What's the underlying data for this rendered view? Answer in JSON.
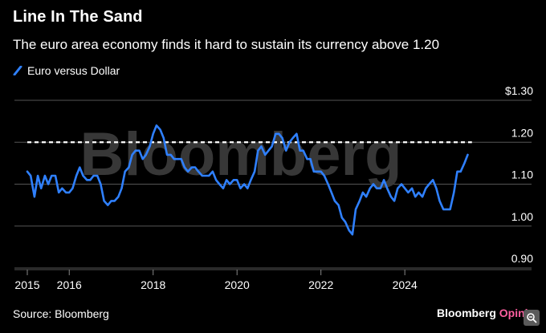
{
  "title": "Line In The Sand",
  "subtitle": "The euro area economy finds it hard to sustain its currency above 1.20",
  "legend": {
    "label": "Euro versus Dollar"
  },
  "watermark": "Bloomberg",
  "source": "Source: Bloomberg",
  "brand": {
    "name": "Bloomberg",
    "suffix": "Opinion"
  },
  "colors": {
    "series": "#2f80ff",
    "background": "#000000",
    "grid": "#555555",
    "reference": "#ffffff",
    "brand_accent": "#ff5fa0"
  },
  "icons": {
    "corner": "expand-icon"
  },
  "chart_data": {
    "type": "line",
    "title": "Line In The Sand",
    "subtitle": "The euro area economy finds it hard to sustain its currency above 1.20",
    "xlabel": "",
    "ylabel": "",
    "xlim": [
      2015,
      2026.6
    ],
    "ylim": [
      0.88,
      1.3
    ],
    "y_ticks": [
      {
        "value": 1.3,
        "label": "$1.30"
      },
      {
        "value": 1.2,
        "label": "1.20"
      },
      {
        "value": 1.1,
        "label": "1.10"
      },
      {
        "value": 1.0,
        "label": "1.00"
      },
      {
        "value": 0.9,
        "label": "0.90"
      }
    ],
    "x_ticks": [
      {
        "value": 2015,
        "label": "2015"
      },
      {
        "value": 2016,
        "label": "2016"
      },
      {
        "value": 2018,
        "label": "2018"
      },
      {
        "value": 2020,
        "label": "2020"
      },
      {
        "value": 2022,
        "label": "2022"
      },
      {
        "value": 2024,
        "label": "2024"
      }
    ],
    "reference_line": {
      "y": 1.2,
      "style": "dashed",
      "x_from": 2015,
      "x_to": 2025.6
    },
    "grid": "horizontal",
    "legend_position": "top-left",
    "series": [
      {
        "name": "Euro versus Dollar",
        "x": [
          2015.0,
          2015.08,
          2015.17,
          2015.25,
          2015.33,
          2015.42,
          2015.5,
          2015.58,
          2015.67,
          2015.75,
          2015.83,
          2015.92,
          2016.0,
          2016.08,
          2016.17,
          2016.25,
          2016.33,
          2016.42,
          2016.5,
          2016.58,
          2016.67,
          2016.75,
          2016.83,
          2016.92,
          2017.0,
          2017.08,
          2017.17,
          2017.25,
          2017.33,
          2017.42,
          2017.5,
          2017.58,
          2017.67,
          2017.75,
          2017.83,
          2017.92,
          2018.0,
          2018.08,
          2018.17,
          2018.25,
          2018.33,
          2018.42,
          2018.5,
          2018.58,
          2018.67,
          2018.75,
          2018.83,
          2018.92,
          2019.0,
          2019.08,
          2019.17,
          2019.25,
          2019.33,
          2019.42,
          2019.5,
          2019.58,
          2019.67,
          2019.75,
          2019.83,
          2019.92,
          2020.0,
          2020.08,
          2020.17,
          2020.25,
          2020.33,
          2020.42,
          2020.5,
          2020.58,
          2020.67,
          2020.75,
          2020.83,
          2020.92,
          2021.0,
          2021.08,
          2021.17,
          2021.25,
          2021.33,
          2021.42,
          2021.5,
          2021.58,
          2021.67,
          2021.75,
          2021.83,
          2021.92,
          2022.0,
          2022.08,
          2022.17,
          2022.25,
          2022.33,
          2022.42,
          2022.5,
          2022.58,
          2022.67,
          2022.75,
          2022.83,
          2022.92,
          2023.0,
          2023.08,
          2023.17,
          2023.25,
          2023.33,
          2023.42,
          2023.5,
          2023.58,
          2023.67,
          2023.75,
          2023.83,
          2023.92,
          2024.0,
          2024.08,
          2024.17,
          2024.25,
          2024.33,
          2024.42,
          2024.5,
          2024.58,
          2024.67,
          2024.75,
          2024.83,
          2024.92,
          2025.0,
          2025.08,
          2025.17,
          2025.25,
          2025.33,
          2025.42,
          2025.5
        ],
        "values": [
          1.13,
          1.12,
          1.07,
          1.12,
          1.09,
          1.12,
          1.1,
          1.12,
          1.12,
          1.08,
          1.09,
          1.08,
          1.08,
          1.09,
          1.12,
          1.14,
          1.12,
          1.11,
          1.11,
          1.12,
          1.12,
          1.1,
          1.06,
          1.05,
          1.06,
          1.06,
          1.07,
          1.09,
          1.13,
          1.14,
          1.17,
          1.18,
          1.18,
          1.16,
          1.17,
          1.19,
          1.22,
          1.24,
          1.23,
          1.21,
          1.17,
          1.17,
          1.16,
          1.16,
          1.16,
          1.14,
          1.13,
          1.14,
          1.14,
          1.13,
          1.12,
          1.12,
          1.12,
          1.13,
          1.11,
          1.1,
          1.09,
          1.11,
          1.1,
          1.11,
          1.11,
          1.09,
          1.1,
          1.09,
          1.11,
          1.13,
          1.18,
          1.19,
          1.17,
          1.18,
          1.19,
          1.22,
          1.22,
          1.21,
          1.18,
          1.2,
          1.21,
          1.22,
          1.18,
          1.18,
          1.16,
          1.16,
          1.13,
          1.13,
          1.13,
          1.12,
          1.1,
          1.08,
          1.06,
          1.05,
          1.02,
          1.01,
          0.99,
          0.98,
          1.04,
          1.06,
          1.08,
          1.07,
          1.09,
          1.1,
          1.09,
          1.09,
          1.11,
          1.09,
          1.07,
          1.06,
          1.09,
          1.1,
          1.09,
          1.08,
          1.09,
          1.07,
          1.08,
          1.07,
          1.09,
          1.1,
          1.11,
          1.09,
          1.06,
          1.04,
          1.04,
          1.04,
          1.08,
          1.13,
          1.13,
          1.15,
          1.17
        ]
      }
    ]
  }
}
